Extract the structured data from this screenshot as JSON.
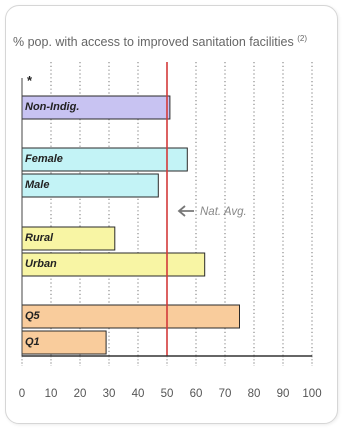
{
  "chart_data": {
    "type": "bar",
    "orientation": "horizontal",
    "title": "% pop. with access to improved sanitation facilities",
    "title_superscript": "(2)",
    "star_label": "*",
    "categories": [
      "Non-Indig.",
      "Female",
      "Male",
      "Rural",
      "Urban",
      "Q5",
      "Q1"
    ],
    "values": [
      51,
      57,
      47,
      32,
      63,
      75,
      29
    ],
    "groups": [
      {
        "categories": [
          "Non-Indig."
        ],
        "color": "#c8c3f2"
      },
      {
        "categories": [
          "Female",
          "Male"
        ],
        "color": "#c3f3f6"
      },
      {
        "categories": [
          "Rural",
          "Urban"
        ],
        "color": "#f8f5a4"
      },
      {
        "categories": [
          "Q5",
          "Q1"
        ],
        "color": "#f9cc9c"
      }
    ],
    "reference_line": {
      "value": 50,
      "label": "Nat. Avg.",
      "color": "#d33a3a"
    },
    "xlim": [
      0,
      100
    ],
    "xticks": [
      "0",
      "10",
      "20",
      "30",
      "40",
      "50",
      "60",
      "70",
      "80",
      "90",
      "100"
    ],
    "grid": true,
    "grid_axis": "x",
    "colors": {
      "grid": "#555555",
      "axis": "#333333",
      "tick_text": "#555555",
      "title_text": "#666666",
      "annotation_text": "#888888"
    }
  }
}
